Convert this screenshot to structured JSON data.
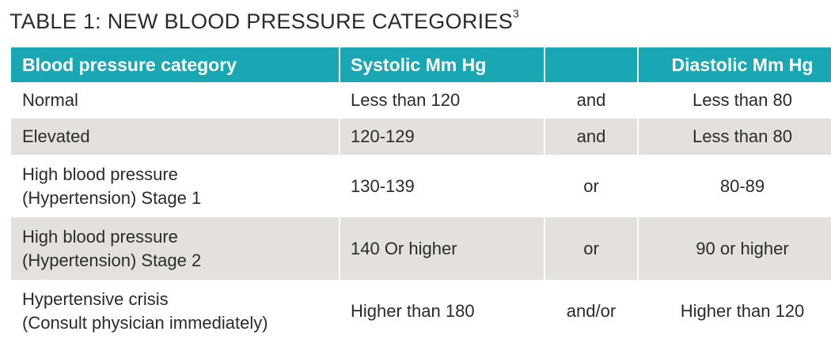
{
  "title": {
    "text": "TABLE 1: NEW BLOOD PRESSURE CATEGORIES",
    "superscript": "3"
  },
  "table": {
    "headers": [
      "Blood pressure category",
      "Systolic Mm Hg",
      "",
      "Diastolic Mm Hg"
    ],
    "rows": [
      {
        "category": [
          "Normal"
        ],
        "systolic": "Less than 120",
        "connector": "and",
        "diastolic": "Less than 80"
      },
      {
        "category": [
          "Elevated"
        ],
        "systolic": "120-129",
        "connector": "and",
        "diastolic": "Less than 80"
      },
      {
        "category": [
          "High blood pressure",
          "(Hypertension) Stage 1"
        ],
        "systolic": "130-139",
        "connector": "or",
        "diastolic": "80-89"
      },
      {
        "category": [
          "High blood pressure",
          "(Hypertension) Stage 2"
        ],
        "systolic": "140 Or higher",
        "connector": "or",
        "diastolic": "90 or higher"
      },
      {
        "category": [
          "Hypertensive crisis",
          "(Consult physician immediately)"
        ],
        "systolic": "Higher than 180",
        "connector": "and/or",
        "diastolic": "Higher than 120"
      }
    ]
  },
  "colors": {
    "header_bg": "#1aa7b4",
    "header_text": "#ffffff",
    "shaded_row_bg": "#e4e1dc",
    "text": "#2b2b2b"
  }
}
